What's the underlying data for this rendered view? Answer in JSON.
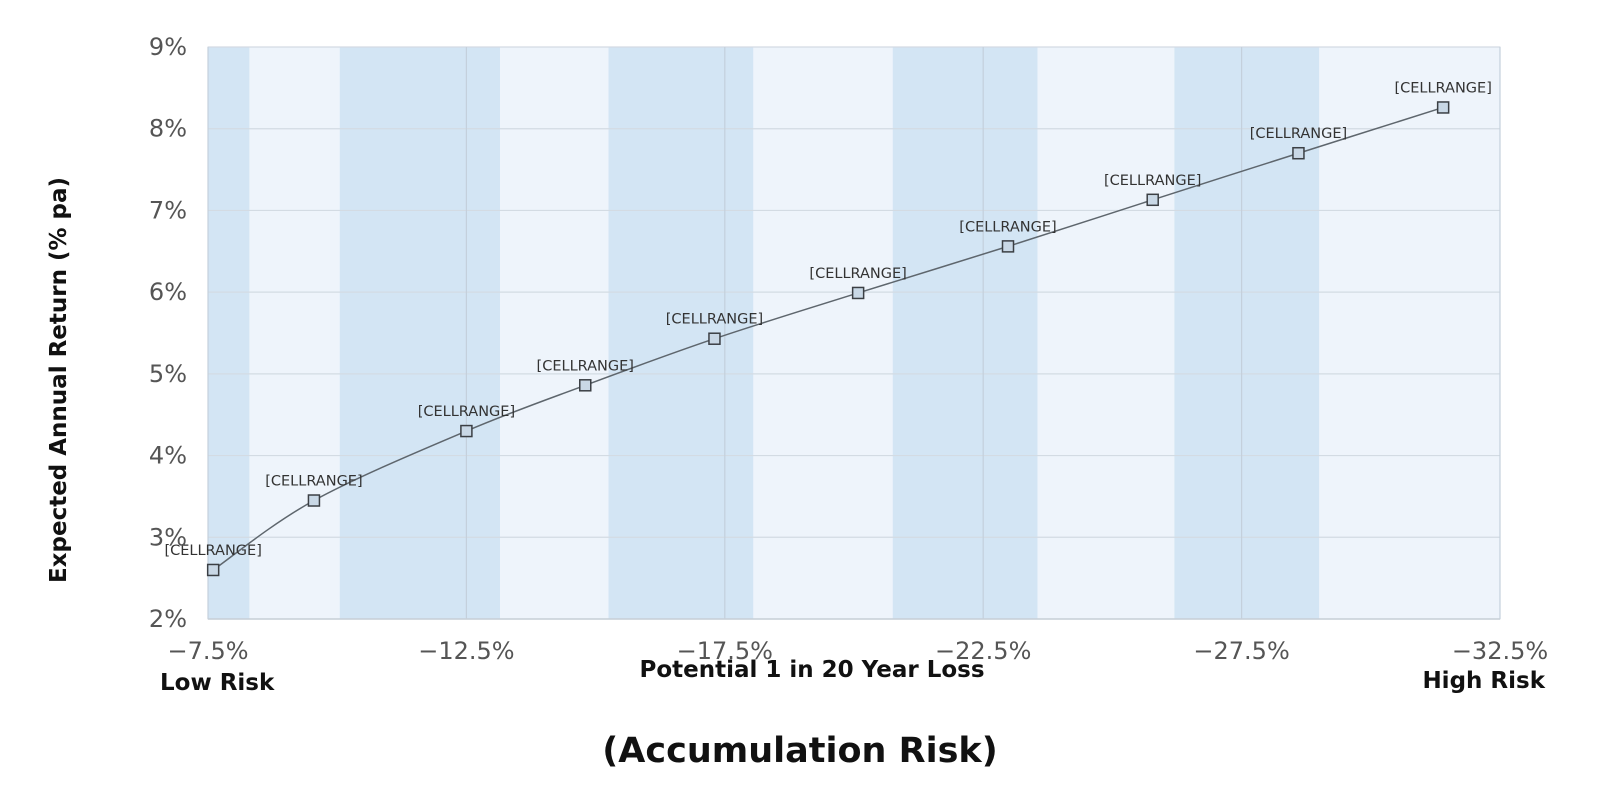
{
  "chart_data": {
    "type": "line",
    "xlabel": "Potential 1 in 20 Year Loss",
    "ylabel": "Expected Annual Return (% pa)",
    "subtitle": "(Accumulation Risk)",
    "low_risk_label": "Low Risk",
    "high_risk_label": "High Risk",
    "xlim": [
      -7.5,
      -32.5
    ],
    "ylim": [
      2,
      9
    ],
    "x_ticks": [
      -7.5,
      -12.5,
      -17.5,
      -22.5,
      -27.5,
      -32.5
    ],
    "x_tick_labels": [
      "−7.5%",
      "−12.5%",
      "−17.5%",
      "−22.5%",
      "−27.5%",
      "−32.5%"
    ],
    "y_ticks": [
      2,
      3,
      4,
      5,
      6,
      7,
      8,
      9
    ],
    "y_tick_labels": [
      "2%",
      "3%",
      "4%",
      "5%",
      "6%",
      "7%",
      "8%",
      "9%"
    ],
    "grid": true,
    "bands": [
      {
        "from": -7.5,
        "to": -8.3
      },
      {
        "from": -10.05,
        "to": -13.15
      },
      {
        "from": -15.25,
        "to": -18.05
      },
      {
        "from": -20.75,
        "to": -23.55
      },
      {
        "from": -26.2,
        "to": -29.0
      }
    ],
    "band_color": "#d3e5f4",
    "plot_bg_color": "#eef4fb",
    "line_color": "#5e666d",
    "marker_fill": "#c9d8e6",
    "series": [
      {
        "x": [
          -7.6,
          -9.55,
          -12.5,
          -14.8,
          -17.3,
          -20.08,
          -22.98,
          -25.78,
          -28.6,
          -31.4
        ],
        "y": [
          2.6,
          3.45,
          4.3,
          4.86,
          5.43,
          5.99,
          6.56,
          7.13,
          7.7,
          8.26
        ],
        "labels": [
          "[CELLRANGE]",
          "[CELLRANGE]",
          "[CELLRANGE]",
          "[CELLRANGE]",
          "[CELLRANGE]",
          "[CELLRANGE]",
          "[CELLRANGE]",
          "[CELLRANGE]",
          "[CELLRANGE]",
          "[CELLRANGE]"
        ]
      }
    ]
  }
}
